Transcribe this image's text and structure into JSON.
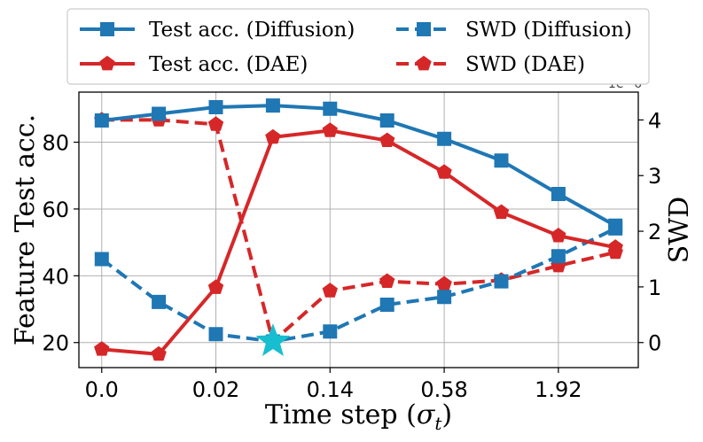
{
  "chart_data": {
    "type": "line",
    "xlabel": "Time step (σ",
    "xlabel_sub": "t",
    "xlabel_close": ")",
    "ylabel_left": "Feature Test acc.",
    "ylabel_right": "SWD",
    "right_axis_offset": "1e−6",
    "x_ticks": [
      "0.0",
      "0.02",
      "0.14",
      "0.58",
      "1.92"
    ],
    "x_tick_positions": [
      0,
      2,
      4,
      6,
      8
    ],
    "xlim": [
      -0.4,
      9.4
    ],
    "ylim_left": [
      12.5,
      95
    ],
    "ylim_right": [
      -0.45,
      4.5
    ],
    "yticks_left": [
      20,
      40,
      60,
      80
    ],
    "yticks_right": [
      0,
      1,
      2,
      3,
      4
    ],
    "grid": true,
    "legend_position": "top-center",
    "colors": {
      "diffusion": "#1f77b4",
      "dae": "#d62728",
      "star": "#17becf"
    },
    "series": [
      {
        "name": "Test acc. (Diffusion)",
        "axis": "left",
        "style": "solid",
        "marker": "square",
        "color": "#1f77b4",
        "x": [
          0,
          1,
          2,
          3,
          4,
          5,
          6,
          7,
          8,
          9
        ],
        "y": [
          86.5,
          88.5,
          90.5,
          91,
          90,
          86.5,
          81,
          74.5,
          64.5,
          55
        ]
      },
      {
        "name": "Test acc. (DAE)",
        "axis": "left",
        "style": "solid",
        "marker": "pentagon",
        "color": "#d62728",
        "x": [
          0,
          1,
          2,
          3,
          4,
          5,
          6,
          7,
          8,
          9
        ],
        "y": [
          18,
          16.5,
          36.5,
          81.5,
          83.5,
          80.5,
          71,
          59,
          52,
          48.5
        ]
      },
      {
        "name": "SWD (Diffusion)",
        "axis": "right",
        "style": "dashed",
        "marker": "square",
        "color": "#1f77b4",
        "x": [
          0,
          1,
          2,
          3,
          4,
          5,
          6,
          7,
          8,
          9
        ],
        "y": [
          1.5,
          0.73,
          0.15,
          0.02,
          0.2,
          0.68,
          0.82,
          1.1,
          1.55,
          2.05
        ]
      },
      {
        "name": "SWD (DAE)",
        "axis": "right",
        "style": "dashed",
        "marker": "pentagon",
        "color": "#d62728",
        "x": [
          0,
          1,
          2,
          3,
          4,
          5,
          6,
          7,
          8,
          9
        ],
        "y": [
          4.0,
          4.0,
          3.92,
          0.02,
          0.93,
          1.1,
          1.05,
          1.12,
          1.38,
          1.62
        ]
      }
    ],
    "highlight": {
      "marker": "star",
      "axis": "right",
      "x": 3,
      "y": 0.02,
      "color": "#17becf"
    }
  }
}
